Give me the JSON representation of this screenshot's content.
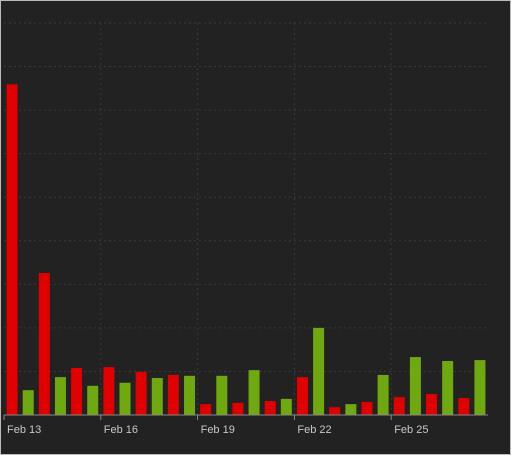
{
  "chart_data": {
    "type": "bar",
    "categories": [
      "Feb 13",
      null,
      null,
      null,
      null,
      null,
      "Feb 16",
      null,
      null,
      null,
      null,
      null,
      "Feb 19",
      null,
      null,
      null,
      null,
      null,
      "Feb 22",
      null,
      null,
      null,
      null,
      null,
      "Feb 25",
      null,
      null,
      null,
      null,
      null
    ],
    "values": [
      7.59,
      0.57,
      3.26,
      0.87,
      1.08,
      0.67,
      1.1,
      0.74,
      0.99,
      0.85,
      0.92,
      0.9,
      0.25,
      0.9,
      0.28,
      1.03,
      0.32,
      0.37,
      0.87,
      2.0,
      0.18,
      0.25,
      0.3,
      0.92,
      0.41,
      1.33,
      0.48,
      1.24,
      0.39,
      1.26
    ],
    "colors": [
      "#e00000",
      "#6fa80f",
      "#e00000",
      "#6fa80f",
      "#e00000",
      "#6fa80f",
      "#e00000",
      "#6fa80f",
      "#e00000",
      "#6fa80f",
      "#e00000",
      "#6fa80f",
      "#e00000",
      "#6fa80f",
      "#e00000",
      "#6fa80f",
      "#e00000",
      "#6fa80f",
      "#e00000",
      "#6fa80f",
      "#e00000",
      "#6fa80f",
      "#e00000",
      "#6fa80f",
      "#e00000",
      "#6fa80f",
      "#e00000",
      "#6fa80f",
      "#e00000",
      "#6fa80f"
    ],
    "ylim": [
      0,
      9
    ],
    "yticks": [
      0,
      1,
      2,
      3,
      4,
      5,
      6,
      7,
      8,
      9
    ],
    "ytick_labels": false,
    "grid": true
  }
}
